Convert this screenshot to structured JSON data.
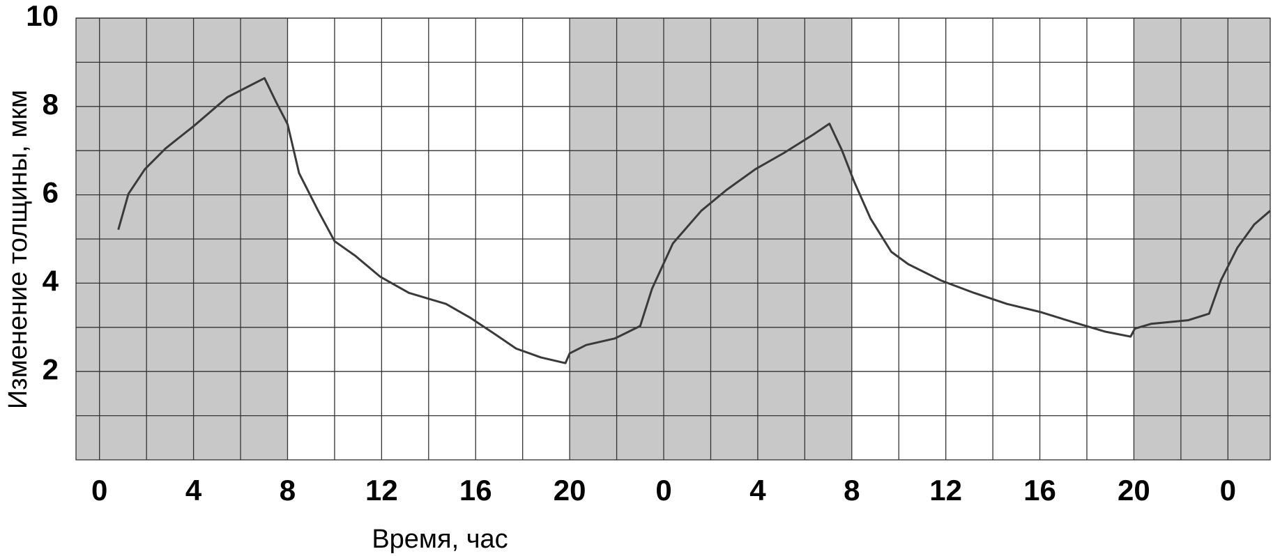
{
  "chart_data": {
    "type": "line",
    "x_label": "Время, час",
    "y_label": "Изменение толщины, мкм",
    "xlim": [
      -1,
      49.8
    ],
    "xticks": [
      {
        "value": 0,
        "label": "0"
      },
      {
        "value": 4,
        "label": "4"
      },
      {
        "value": 8,
        "label": "8"
      },
      {
        "value": 12,
        "label": "12"
      },
      {
        "value": 16,
        "label": "16"
      },
      {
        "value": 20,
        "label": "20"
      },
      {
        "value": 24,
        "label": "0"
      },
      {
        "value": 28,
        "label": "4"
      },
      {
        "value": 32,
        "label": "8"
      },
      {
        "value": 36,
        "label": "12"
      },
      {
        "value": 40,
        "label": "16"
      },
      {
        "value": 44,
        "label": "20"
      },
      {
        "value": 48,
        "label": "0"
      }
    ],
    "minor_xticks": [
      2,
      6,
      10,
      14,
      18,
      22,
      26,
      30,
      34,
      38,
      42,
      46
    ],
    "ylim": [
      0,
      10
    ],
    "yticks": [
      2,
      4,
      6,
      8,
      10
    ],
    "minor_yticks": [
      1,
      3,
      5,
      7,
      9
    ],
    "grid": true,
    "shaded_x": [
      [
        -1,
        8
      ],
      [
        20,
        32
      ],
      [
        44,
        49.8
      ]
    ],
    "shade_color": "#c8c8c8",
    "series": [
      {
        "color": "#3a3a3a",
        "x": [
          0.8,
          1.23,
          1.93,
          2.81,
          4.04,
          5.44,
          6.32,
          7.02,
          7.54,
          8.0,
          8.49,
          9.3,
          10.0,
          10.88,
          11.93,
          13.16,
          14.04,
          14.74,
          15.79,
          16.84,
          17.72,
          18.77,
          19.82,
          20.0,
          20.7,
          21.93,
          23.0,
          23.5,
          24.39,
          25.6,
          26.67,
          27.9,
          29.12,
          30.35,
          31.05,
          31.58,
          32.1,
          32.8,
          33.68,
          34.4,
          35.8,
          37.2,
          38.6,
          40.0,
          41.4,
          42.8,
          43.86,
          44.04,
          44.74,
          46.3,
          47.2,
          47.7,
          48.4,
          49.12,
          49.8
        ],
        "values": [
          5.21,
          6.02,
          6.58,
          7.05,
          7.57,
          8.21,
          8.45,
          8.64,
          8.07,
          7.6,
          6.49,
          5.64,
          4.95,
          4.62,
          4.15,
          3.78,
          3.64,
          3.53,
          3.21,
          2.84,
          2.52,
          2.32,
          2.19,
          2.41,
          2.6,
          2.75,
          3.03,
          3.87,
          4.9,
          5.64,
          6.11,
          6.58,
          6.95,
          7.36,
          7.61,
          7.01,
          6.3,
          5.46,
          4.71,
          4.43,
          4.06,
          3.78,
          3.53,
          3.35,
          3.12,
          2.9,
          2.79,
          2.97,
          3.08,
          3.16,
          3.31,
          4.06,
          4.8,
          5.33,
          5.64
        ]
      }
    ]
  }
}
